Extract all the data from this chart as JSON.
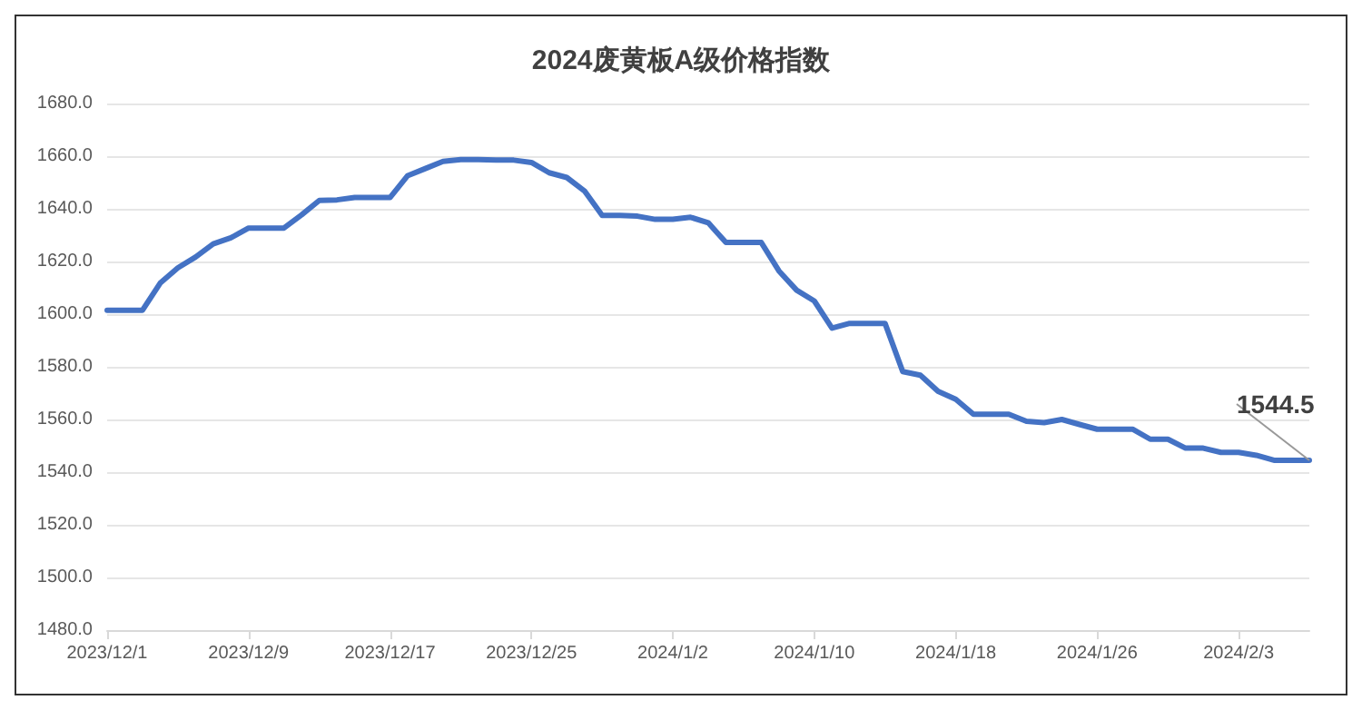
{
  "chart_data": {
    "type": "line",
    "title": "2024废黄板A级价格指数",
    "categories": [
      "2023/12/1",
      null,
      null,
      null,
      null,
      null,
      null,
      null,
      "2023/12/9",
      null,
      null,
      null,
      null,
      null,
      null,
      null,
      "2023/12/17",
      null,
      null,
      null,
      null,
      null,
      null,
      null,
      "2023/12/25",
      null,
      null,
      null,
      null,
      null,
      null,
      null,
      "2024/1/2",
      null,
      null,
      null,
      null,
      null,
      null,
      null,
      "2024/1/10",
      null,
      null,
      null,
      null,
      null,
      null,
      null,
      "2024/1/18",
      null,
      null,
      null,
      null,
      null,
      null,
      null,
      "2024/1/26",
      null,
      null,
      null,
      null,
      null,
      null,
      null,
      "2024/2/3",
      null,
      null,
      null,
      null
    ],
    "series": [
      {
        "color": "#4472c4",
        "values": [
          1601.5,
          1601.5,
          1601.5,
          1611.8,
          1617.6,
          1621.7,
          1626.7,
          1629,
          1632.7,
          1632.7,
          1632.7,
          1637.7,
          1643.2,
          1643.4,
          1644.3,
          1644.3,
          1644.3,
          1652.6,
          1655.3,
          1658,
          1658.7,
          1658.7,
          1658.5,
          1658.5,
          1657.6,
          1653.7,
          1651.9,
          1646.8,
          1637.5,
          1637.5,
          1637.2,
          1636,
          1636,
          1636.8,
          1634.7,
          1627.2,
          1627.2,
          1627.2,
          1616.4,
          1609.1,
          1605,
          1594.7,
          1596.5,
          1596.5,
          1596.5,
          1578.2,
          1576.8,
          1570.7,
          1567.7,
          1562,
          1562,
          1562,
          1559.3,
          1558.8,
          1560,
          1558.1,
          1556.3,
          1556.3,
          1556.3,
          1552.5,
          1552.5,
          1549.1,
          1549.1,
          1547.5,
          1547.5,
          1546.4,
          1544.5,
          1544.5,
          1544.5
        ],
        "value_labels": [
          null,
          null,
          null,
          null,
          null,
          null,
          null,
          null,
          null,
          null,
          null,
          null,
          null,
          null,
          null,
          null,
          null,
          null,
          null,
          null,
          null,
          null,
          null,
          null,
          null,
          null,
          null,
          null,
          null,
          null,
          null,
          null,
          null,
          null,
          null,
          null,
          null,
          null,
          null,
          null,
          null,
          null,
          null,
          null,
          null,
          null,
          null,
          null,
          null,
          null,
          null,
          null,
          null,
          null,
          null,
          null,
          null,
          null,
          null,
          null,
          null,
          null,
          null,
          null,
          null,
          null,
          null,
          null,
          "1544.5"
        ]
      }
    ],
    "ylim": [
      1480,
      1680
    ],
    "yticks": [
      {
        "value": 1480,
        "label": "1480.0"
      },
      {
        "value": 1500,
        "label": "1500.0"
      },
      {
        "value": 1520,
        "label": "1520.0"
      },
      {
        "value": 1540,
        "label": "1540.0"
      },
      {
        "value": 1560,
        "label": "1560.0"
      },
      {
        "value": 1580,
        "label": "1580.0"
      },
      {
        "value": 1600,
        "label": "1600.0"
      },
      {
        "value": 1620,
        "label": "1620.0"
      },
      {
        "value": 1640,
        "label": "1640.0"
      },
      {
        "value": 1660,
        "label": "1660.0"
      },
      {
        "value": 1680,
        "label": "1680.0"
      }
    ],
    "grid": "y",
    "marker": "none",
    "line_style": "solid"
  }
}
